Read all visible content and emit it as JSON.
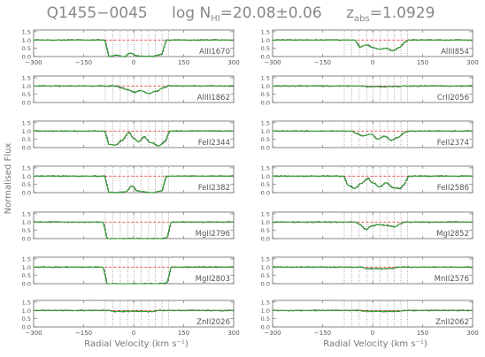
{
  "title": {
    "object": "Q1455−0045",
    "log_prefix": "log N",
    "log_sub": "HI",
    "log_value": "=20.08±0.06",
    "z_prefix": "z",
    "z_sub": "abs",
    "z_value": "=1.0929"
  },
  "ylabel": "Normalised Flux",
  "colors": {
    "data": "#555555",
    "fit": "#2ea02e",
    "continuum": "#dd2222",
    "axis": "#666666",
    "text": "#555555"
  },
  "chart_data": {
    "type": "line",
    "title": "Q1455−0045 log N_HI=20.08±0.06 z_abs=1.0929",
    "xlabel": "Radial Velocity (km s⁻¹)",
    "ylabel": "Normalised Flux",
    "xlim": [
      -300,
      300
    ],
    "ylim": [
      0,
      1.6
    ],
    "x_ticks": [
      -300,
      -150,
      0,
      150,
      300
    ],
    "y_ticks": [
      0.0,
      0.5,
      1.0,
      1.5
    ],
    "x_tick_labels": [
      "−300",
      "−150",
      "0",
      "150",
      "300"
    ],
    "y_tick_labels": [
      "0.0",
      "0.5",
      "1.0",
      "1.5"
    ],
    "continuum_level": 1.0,
    "component_velocities": [
      -85,
      -62,
      -40,
      -18,
      2,
      22,
      45,
      65,
      85,
      105
    ],
    "panels": [
      {
        "col": 0,
        "row": 0,
        "label": "AlII1670",
        "x_labels": true,
        "profile": [
          [
            -75,
            0.02
          ],
          [
            -50,
            0.08
          ],
          [
            -30,
            0.0
          ],
          [
            -10,
            0.2
          ],
          [
            10,
            0.05
          ],
          [
            30,
            0.0
          ],
          [
            60,
            0.03
          ],
          [
            85,
            0.15
          ]
        ]
      },
      {
        "col": 0,
        "row": 1,
        "label": "AlIII1862",
        "x_labels": false,
        "profile": [
          [
            -40,
            0.88
          ],
          [
            -15,
            0.75
          ],
          [
            0,
            0.62
          ],
          [
            20,
            0.72
          ],
          [
            45,
            0.55
          ],
          [
            70,
            0.7
          ],
          [
            90,
            0.9
          ]
        ]
      },
      {
        "col": 0,
        "row": 2,
        "label": "FeII2344",
        "x_labels": false,
        "profile": [
          [
            -75,
            0.2
          ],
          [
            -55,
            0.15
          ],
          [
            -35,
            0.45
          ],
          [
            -15,
            0.9
          ],
          [
            0,
            0.55
          ],
          [
            15,
            0.35
          ],
          [
            30,
            0.65
          ],
          [
            50,
            0.3
          ],
          [
            75,
            0.1
          ],
          [
            95,
            0.4
          ]
        ]
      },
      {
        "col": 0,
        "row": 3,
        "label": "FeII2382",
        "x_labels": false,
        "profile": [
          [
            -75,
            0.02
          ],
          [
            -50,
            0.0
          ],
          [
            -25,
            0.05
          ],
          [
            -5,
            0.4
          ],
          [
            10,
            0.1
          ],
          [
            30,
            0.05
          ],
          [
            55,
            0.0
          ],
          [
            85,
            0.1
          ]
        ]
      },
      {
        "col": 0,
        "row": 4,
        "label": "MgII2796",
        "x_labels": false,
        "profile": [
          [
            -80,
            0.0
          ],
          [
            -40,
            0.0
          ],
          [
            0,
            0.0
          ],
          [
            40,
            0.0
          ],
          [
            80,
            0.0
          ],
          [
            100,
            0.05
          ]
        ]
      },
      {
        "col": 0,
        "row": 5,
        "label": "MgII2803",
        "x_labels": false,
        "profile": [
          [
            -80,
            0.0
          ],
          [
            -40,
            0.0
          ],
          [
            0,
            0.0
          ],
          [
            40,
            0.0
          ],
          [
            80,
            0.0
          ],
          [
            100,
            0.05
          ]
        ]
      },
      {
        "col": 0,
        "row": 6,
        "label": "ZnII2026",
        "x_labels": true,
        "profile": [
          [
            -60,
            0.93
          ],
          [
            0,
            0.95
          ],
          [
            60,
            0.93
          ]
        ]
      },
      {
        "col": 1,
        "row": 0,
        "label": "AlIII854",
        "x_labels": true,
        "profile": [
          [
            -40,
            0.55
          ],
          [
            -20,
            0.7
          ],
          [
            0,
            0.55
          ],
          [
            20,
            0.45
          ],
          [
            40,
            0.5
          ],
          [
            60,
            0.35
          ],
          [
            80,
            0.55
          ],
          [
            95,
            0.85
          ]
        ]
      },
      {
        "col": 1,
        "row": 1,
        "label": "CrII2056",
        "x_labels": false,
        "profile": [
          [
            -20,
            0.97
          ],
          [
            30,
            0.96
          ],
          [
            80,
            0.97
          ]
        ]
      },
      {
        "col": 1,
        "row": 2,
        "label": "FeII2374",
        "x_labels": false,
        "profile": [
          [
            -50,
            0.85
          ],
          [
            -30,
            0.7
          ],
          [
            -5,
            0.8
          ],
          [
            15,
            0.5
          ],
          [
            35,
            0.7
          ],
          [
            55,
            0.45
          ],
          [
            75,
            0.6
          ],
          [
            95,
            0.9
          ]
        ]
      },
      {
        "col": 1,
        "row": 3,
        "label": "FeII2586",
        "x_labels": false,
        "profile": [
          [
            -75,
            0.45
          ],
          [
            -55,
            0.25
          ],
          [
            -35,
            0.55
          ],
          [
            -15,
            0.85
          ],
          [
            0,
            0.6
          ],
          [
            20,
            0.35
          ],
          [
            40,
            0.6
          ],
          [
            60,
            0.3
          ],
          [
            80,
            0.25
          ],
          [
            95,
            0.5
          ]
        ]
      },
      {
        "col": 1,
        "row": 4,
        "label": "MgI2852",
        "x_labels": false,
        "profile": [
          [
            -40,
            0.85
          ],
          [
            -20,
            0.55
          ],
          [
            -5,
            0.75
          ],
          [
            15,
            0.85
          ],
          [
            40,
            0.8
          ],
          [
            65,
            0.7
          ],
          [
            85,
            0.9
          ]
        ]
      },
      {
        "col": 1,
        "row": 5,
        "label": "MnII2576",
        "x_labels": false,
        "profile": [
          [
            -20,
            0.92
          ],
          [
            20,
            0.9
          ],
          [
            60,
            0.92
          ]
        ]
      },
      {
        "col": 1,
        "row": 6,
        "label": "ZnII2062",
        "x_labels": true,
        "profile": [
          [
            -30,
            0.95
          ],
          [
            30,
            0.94
          ],
          [
            80,
            0.95
          ]
        ]
      }
    ]
  }
}
